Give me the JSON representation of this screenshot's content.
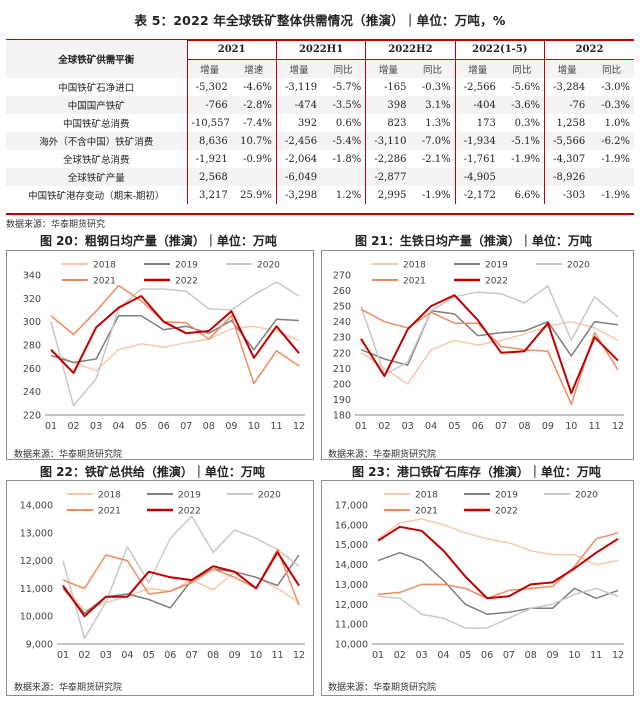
{
  "table": {
    "title": "表 5：2022 年全球铁矿整体供需情况（推演）｜单位：万吨，%",
    "header_label": "全球铁矿供需平衡",
    "groups": [
      "2021",
      "2022H1",
      "2022H2",
      "2022(1-5)",
      "2022"
    ],
    "subheaders": [
      "增量",
      "增速",
      "增量",
      "同比",
      "增量",
      "同比",
      "增量",
      "同比",
      "增量",
      "同比"
    ],
    "rows": [
      {
        "label": "中国铁矿石净进口",
        "cells": [
          "-5,302",
          "-4.6%",
          "-3,119",
          "-5.7%",
          "-165",
          "-0.3%",
          "-2,566",
          "-5.6%",
          "-3,284",
          "-3.0%"
        ]
      },
      {
        "label": "中国国产铁矿",
        "cells": [
          "-766",
          "-2.8%",
          "-474",
          "-3.5%",
          "398",
          "3.1%",
          "-404",
          "-3.6%",
          "-76",
          "-0.3%"
        ]
      },
      {
        "label": "中国铁矿总消费",
        "cells": [
          "-10,557",
          "-7.4%",
          "392",
          "0.6%",
          "823",
          "1.3%",
          "173",
          "0.3%",
          "1,258",
          "1.0%"
        ]
      },
      {
        "label": "海外（不含中国）铁矿消费",
        "cells": [
          "8,636",
          "10.7%",
          "-2,456",
          "-5.4%",
          "-3,110",
          "-7.0%",
          "-1,934",
          "-5.1%",
          "-5,566",
          "-6.2%"
        ]
      },
      {
        "label": "全球铁矿总消费",
        "cells": [
          "-1,921",
          "-0.9%",
          "-2,064",
          "-1.8%",
          "-2,286",
          "-2.1%",
          "-1,761",
          "-1.9%",
          "-4,307",
          "-1.9%"
        ]
      },
      {
        "label": "全球铁矿产量",
        "cells": [
          "2,568",
          "",
          "-6,049",
          "",
          "-2,877",
          "",
          "-4,905",
          "",
          "-8,926",
          ""
        ]
      },
      {
        "label": "中国铁矿港存变动（期末-期初）",
        "cells": [
          "3,217",
          "25.9%",
          "-3,298",
          "1.2%",
          "2,995",
          "-1.9%",
          "-2,172",
          "6.6%",
          "-303",
          "-1.9%"
        ]
      }
    ],
    "source": "数据来源：华泰期货研究"
  },
  "chart_data": [
    {
      "id": "fig20",
      "type": "line",
      "title": "图 20：粗钢日均产量（推演）｜单位：万吨",
      "source": "数据来源：华泰期货研究院",
      "categories": [
        "01",
        "02",
        "03",
        "04",
        "05",
        "06",
        "07",
        "08",
        "09",
        "10",
        "11",
        "12"
      ],
      "ylim": [
        220,
        340
      ],
      "yticks": [
        220,
        240,
        260,
        280,
        300,
        320,
        340
      ],
      "series": [
        {
          "name": "2018",
          "color": "#f5c9ad",
          "width": 1.5,
          "values": [
            274,
            265,
            258,
            276,
            281,
            278,
            282,
            285,
            294,
            296,
            292,
            284
          ]
        },
        {
          "name": "2019",
          "color": "#7f7f7f",
          "width": 1.5,
          "values": [
            271,
            265,
            268,
            305,
            305,
            293,
            296,
            290,
            301,
            276,
            302,
            301
          ]
        },
        {
          "name": "2020",
          "color": "#c8c8c8",
          "width": 1.5,
          "values": [
            300,
            228,
            251,
            311,
            328,
            328,
            326,
            311,
            310,
            323,
            334,
            322
          ]
        },
        {
          "name": "2021",
          "color": "#f08a5e",
          "width": 1.5,
          "values": [
            305,
            289,
            309,
            331,
            318,
            300,
            299,
            285,
            305,
            247,
            275,
            262
          ]
        },
        {
          "name": "2022",
          "color": "#c00000",
          "width": 2,
          "values": [
            276,
            256,
            295,
            312,
            322,
            300,
            290,
            292,
            309,
            269,
            296,
            273
          ]
        }
      ]
    },
    {
      "id": "fig21",
      "type": "line",
      "title": "图 21：生铁日均产量（推演）｜单位：万吨",
      "source": "数据来源：华泰期货研究院",
      "categories": [
        "01",
        "02",
        "03",
        "04",
        "05",
        "06",
        "07",
        "08",
        "09",
        "10",
        "11",
        "12"
      ],
      "ylim": [
        180,
        270
      ],
      "yticks": [
        180,
        190,
        200,
        210,
        220,
        230,
        240,
        250,
        260,
        270
      ],
      "series": [
        {
          "name": "2018",
          "color": "#f5c9ad",
          "width": 1.5,
          "values": [
            220,
            210,
            200,
            222,
            228,
            225,
            228,
            232,
            237,
            240,
            236,
            228
          ]
        },
        {
          "name": "2019",
          "color": "#7f7f7f",
          "width": 1.5,
          "values": [
            222,
            216,
            212,
            247,
            245,
            231,
            233,
            234,
            240,
            218,
            240,
            238
          ]
        },
        {
          "name": "2020",
          "color": "#c8c8c8",
          "width": 1.5,
          "values": [
            250,
            206,
            214,
            247,
            256,
            259,
            258,
            252,
            263,
            228,
            256,
            243
          ]
        },
        {
          "name": "2021",
          "color": "#f08a5e",
          "width": 1.5,
          "values": [
            248,
            240,
            236,
            246,
            239,
            239,
            224,
            222,
            221,
            187,
            233,
            209
          ]
        },
        {
          "name": "2022",
          "color": "#c00000",
          "width": 2,
          "values": [
            229,
            205,
            235,
            250,
            257,
            241,
            220,
            221,
            239,
            194,
            230,
            215
          ]
        }
      ]
    },
    {
      "id": "fig22",
      "type": "line",
      "title": "图 22：铁矿总供给（推演）｜单位：万吨",
      "source": "数据来源：华泰期货研究院",
      "categories": [
        "01",
        "02",
        "03",
        "04",
        "05",
        "06",
        "07",
        "08",
        "09",
        "10",
        "11",
        "12"
      ],
      "ylim": [
        9000,
        14000
      ],
      "yticks": [
        9000,
        10000,
        11000,
        12000,
        13000,
        14000
      ],
      "series": [
        {
          "name": "2018",
          "color": "#f5c9ad",
          "width": 1.5,
          "values": [
            11100,
            10200,
            10500,
            10700,
            11000,
            10900,
            11300,
            10950,
            11600,
            11400,
            11000,
            10500
          ]
        },
        {
          "name": "2019",
          "color": "#7f7f7f",
          "width": 1.5,
          "values": [
            11000,
            10100,
            10700,
            10800,
            10600,
            10300,
            11300,
            11700,
            11600,
            11400,
            11100,
            12200
          ]
        },
        {
          "name": "2020",
          "color": "#c8c8c8",
          "width": 1.5,
          "values": [
            12000,
            9200,
            10500,
            12500,
            11200,
            12800,
            13600,
            12300,
            13100,
            12800,
            12400,
            11800
          ]
        },
        {
          "name": "2021",
          "color": "#f08a5e",
          "width": 1.5,
          "values": [
            11300,
            11000,
            12200,
            12000,
            10800,
            10900,
            11200,
            11700,
            11400,
            11000,
            12400,
            10400
          ]
        },
        {
          "name": "2022",
          "color": "#c00000",
          "width": 2,
          "values": [
            11100,
            10000,
            10700,
            10700,
            11600,
            11400,
            11300,
            11800,
            11600,
            11000,
            12300,
            11100
          ]
        }
      ]
    },
    {
      "id": "fig23",
      "type": "line",
      "title": "图 23：港口铁矿石库存（推演）｜单位：万吨",
      "source": "数据来源：华泰期货研究院",
      "categories": [
        "01",
        "02",
        "03",
        "04",
        "05",
        "06",
        "07",
        "08",
        "09",
        "10",
        "11",
        "12"
      ],
      "ylim": [
        10000,
        17000
      ],
      "yticks": [
        10000,
        11000,
        12000,
        13000,
        14000,
        15000,
        16000,
        17000
      ],
      "series": [
        {
          "name": "2018",
          "color": "#f5c9ad",
          "width": 1.5,
          "values": [
            15300,
            16100,
            16300,
            16000,
            15600,
            15300,
            15100,
            14700,
            14500,
            14500,
            14000,
            14200
          ]
        },
        {
          "name": "2019",
          "color": "#7f7f7f",
          "width": 1.5,
          "values": [
            14200,
            14600,
            14200,
            13200,
            12000,
            11500,
            11600,
            11800,
            11800,
            12800,
            12300,
            12700
          ]
        },
        {
          "name": "2020",
          "color": "#c8c8c8",
          "width": 1.5,
          "values": [
            12400,
            12300,
            11500,
            11300,
            10800,
            10800,
            11300,
            11800,
            12000,
            12500,
            12800,
            12400
          ]
        },
        {
          "name": "2021",
          "color": "#f08a5e",
          "width": 1.5,
          "values": [
            12500,
            12600,
            13000,
            13000,
            12800,
            12300,
            12700,
            12800,
            12900,
            13900,
            15300,
            15600
          ]
        },
        {
          "name": "2022",
          "color": "#c00000",
          "width": 2,
          "values": [
            15200,
            15900,
            15700,
            14700,
            13400,
            12300,
            12400,
            13000,
            13100,
            13800,
            14600,
            15300
          ]
        }
      ]
    }
  ]
}
